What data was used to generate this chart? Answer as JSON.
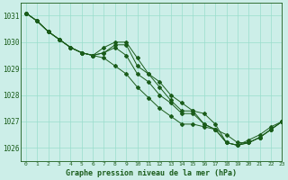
{
  "title": "Graphe pression niveau de la mer (hPa)",
  "bg_color": "#cceee8",
  "grid_color": "#99ddcc",
  "line_color": "#1a5c1a",
  "text_color": "#1a5c1a",
  "xlim": [
    -0.5,
    23
  ],
  "ylim": [
    1025.5,
    1031.5
  ],
  "yticks": [
    1026,
    1027,
    1028,
    1029,
    1030,
    1031
  ],
  "xticks": [
    0,
    1,
    2,
    3,
    4,
    5,
    6,
    7,
    8,
    9,
    10,
    11,
    12,
    13,
    14,
    15,
    16,
    17,
    18,
    19,
    20,
    21,
    22,
    23
  ],
  "series": [
    [
      1031.1,
      1030.8,
      1030.4,
      1030.1,
      1029.8,
      1029.6,
      1029.5,
      1029.8,
      1030.0,
      1030.0,
      1029.4,
      1028.8,
      1028.5,
      1028.0,
      1027.7,
      1027.4,
      1027.3,
      1026.9,
      1026.2,
      1026.1,
      1026.3,
      1026.5,
      1026.8,
      1027.0
    ],
    [
      1031.1,
      1030.8,
      1030.4,
      1030.1,
      1029.8,
      1029.6,
      1029.5,
      1029.6,
      1029.9,
      1029.9,
      1029.1,
      1028.8,
      1028.3,
      1027.8,
      1027.4,
      1027.4,
      1026.9,
      1026.7,
      1026.2,
      1026.1,
      1026.2,
      1026.4,
      1026.7,
      1027.0
    ],
    [
      1031.1,
      1030.8,
      1030.4,
      1030.1,
      1029.8,
      1029.6,
      1029.5,
      1029.6,
      1029.8,
      1029.5,
      1028.8,
      1028.5,
      1028.0,
      1027.7,
      1027.3,
      1027.3,
      1026.9,
      1026.7,
      1026.2,
      1026.1,
      1026.2,
      1026.4,
      1026.7,
      1027.0
    ],
    [
      1031.1,
      1030.8,
      1030.4,
      1030.1,
      1029.8,
      1029.6,
      1029.5,
      1029.4,
      1029.1,
      1028.8,
      1028.3,
      1027.9,
      1027.5,
      1027.2,
      1026.9,
      1026.9,
      1026.8,
      1026.7,
      1026.5,
      1026.2,
      1026.2,
      1026.4,
      1026.7,
      1027.0
    ]
  ]
}
